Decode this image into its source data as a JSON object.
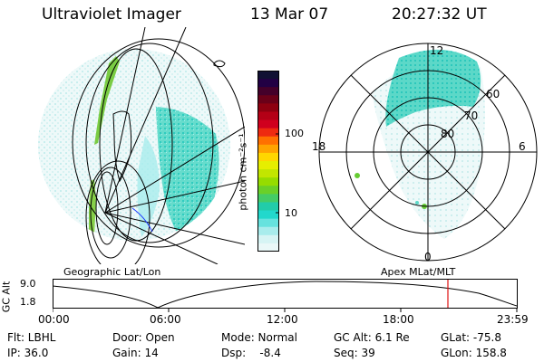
{
  "header": {
    "title": "Ultraviolet Imager",
    "date": "13 Mar 07",
    "time": "20:27:32 UT"
  },
  "left_panel": {
    "caption": "Geographic Lat/Lon"
  },
  "right_panel": {
    "caption": "Apex MLat/MLT",
    "mlt_labels": {
      "top": "12",
      "bottom": "0",
      "left": "18",
      "right": "6"
    },
    "lat_labels": [
      "60",
      "70",
      "80"
    ]
  },
  "colorbar": {
    "label": "photon cm⁻²s⁻¹",
    "ticks": [
      "100",
      "10"
    ],
    "colors": [
      "#111133",
      "#220044",
      "#44002a",
      "#6a0018",
      "#8e0010",
      "#b40016",
      "#d0001e",
      "#ee2a10",
      "#ff7000",
      "#ffa400",
      "#ffd600",
      "#e6ee00",
      "#c2e600",
      "#96dc00",
      "#6ad028",
      "#44cc66",
      "#22ccaa",
      "#22d8cc",
      "#66e2de",
      "#a8ecec",
      "#d6f4f4",
      "#eaf8f8"
    ],
    "colors_hint": "palette top to bottom"
  },
  "altitude_plot": {
    "ylabel": "GC Alt",
    "yticks": [
      "9.0",
      "1.8"
    ],
    "xticks": [
      "00:00",
      "06:00",
      "12:00",
      "18:00",
      "23:59"
    ],
    "curve_color": "#000000",
    "marker_color": "#e01010"
  },
  "info": {
    "flt": "Flt: LBHL",
    "door": "Door: Open",
    "mode": "Mode: Normal",
    "gcalt": "GC Alt: 6.1 Re",
    "glat": "GLat: -75.8",
    "ip": "IP: 36.0",
    "gain": "Gain: 14",
    "dsp": "Dsp:    -8.4",
    "seq": "Seq: 39",
    "glon": "GLon: 158.8"
  }
}
